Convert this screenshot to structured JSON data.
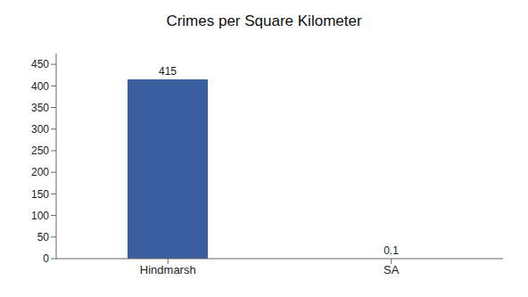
{
  "chart_data": {
    "type": "bar",
    "title": "Crimes per Square Kilometer",
    "categories": [
      "Hindmarsh",
      "SA"
    ],
    "values": [
      415,
      0.1
    ],
    "color": "#3a5f9f",
    "ylim": [
      0,
      475
    ],
    "yticks": [
      0,
      50,
      100,
      150,
      200,
      250,
      300,
      350,
      400,
      450
    ],
    "data_labels": true
  }
}
